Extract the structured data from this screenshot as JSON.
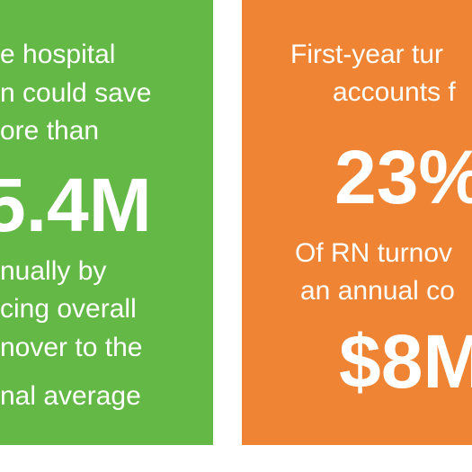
{
  "left_card": {
    "intro_lines": [
      "e hospital",
      "n could save",
      "ore than"
    ],
    "big_value": "5.4M",
    "outro_lines": [
      "nually by",
      "cing overall",
      "nover to the",
      "nal average"
    ]
  },
  "right_card": {
    "intro_lines": [
      "First-year tur",
      "accounts f"
    ],
    "big_value": "23%",
    "middle_lines": [
      "Of RN turnov",
      "an annual co"
    ],
    "big_value_2": "$8M"
  },
  "colors": {
    "left_card_bg": "#63b846",
    "right_card_bg": "#ee8434",
    "text": "#ffffff"
  }
}
